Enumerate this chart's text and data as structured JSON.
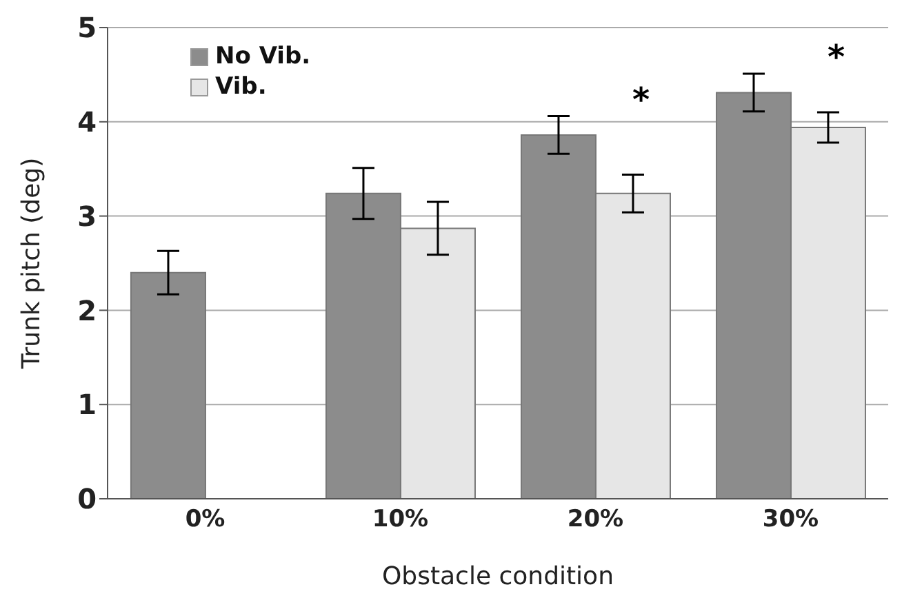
{
  "chart_data": {
    "type": "bar",
    "xlabel": "Obstacle condition",
    "ylabel": "Trunk pitch (deg)",
    "categories": [
      "0%",
      "10%",
      "20%",
      "30%"
    ],
    "series": [
      {
        "name": "No Vib.",
        "color": "#8c8c8c",
        "values": [
          2.4,
          3.24,
          3.86,
          4.31
        ],
        "errors": [
          0.23,
          0.27,
          0.2,
          0.2
        ]
      },
      {
        "name": "Vib.",
        "color": "#e6e6e6",
        "values": [
          null,
          2.87,
          3.24,
          3.94
        ],
        "errors": [
          null,
          0.28,
          0.2,
          0.16
        ]
      }
    ],
    "ylim": [
      0,
      5
    ],
    "yticks": [
      0,
      1,
      2,
      3,
      4,
      5
    ],
    "grid": "y",
    "legend": "top left",
    "annotations": [
      "*",
      "*"
    ]
  }
}
